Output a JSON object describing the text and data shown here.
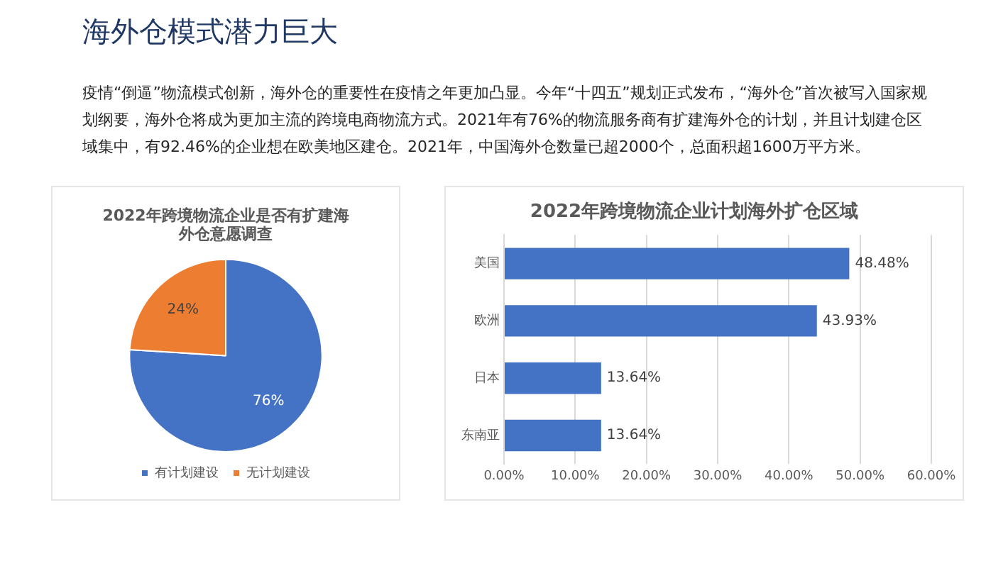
{
  "chart_data": [
    {
      "type": "other",
      "title": "海外仓模式潜力巨大",
      "annotations": [
        "疫情“倒逼”物流模式创新，海外仓的重要性在疫情之年更加凸显。今年“十四五”规划正式发布，“海外仓”首次被写入国家规划纲要，海外仓将成为更加主流的跨境电商物流方式。2021年有76%的物流服务商有扩建海外仓的计划，并且计划建仓区域集中，有92.46%的企业想在欧美地区建仓。2021年，中国海外仓数量已超2000个，总面积超1600万平方米。"
      ]
    },
    {
      "type": "pie",
      "title": "2022年跨境物流企业是否有扩建海外仓意愿调查",
      "categories": [
        "有计划建设",
        "无计划建设"
      ],
      "values": [
        76,
        24
      ],
      "colors": [
        "#4472c4",
        "#ed7d31"
      ],
      "value_labels": [
        "76%",
        "24%"
      ],
      "legend": "bottom"
    },
    {
      "type": "bar",
      "orientation": "horizontal",
      "title": "2022年跨境物流企业计划海外扩仓区域",
      "categories": [
        "美国",
        "欧洲",
        "日本",
        "东南亚"
      ],
      "values": [
        48.48,
        43.93,
        13.64,
        13.64
      ],
      "color": "#4472c4",
      "value_labels": [
        "48.48%",
        "43.93%",
        "13.64%",
        "13.64%"
      ],
      "xlim": [
        0,
        60
      ],
      "xticks": [
        {
          "value": 0,
          "label": "0.00%"
        },
        {
          "value": 10,
          "label": "10.00%"
        },
        {
          "value": 20,
          "label": "20.00%"
        },
        {
          "value": 30,
          "label": "30.00%"
        },
        {
          "value": 40,
          "label": "40.00%"
        },
        {
          "value": 50,
          "label": "50.00%"
        },
        {
          "value": 60,
          "label": "60.00%"
        }
      ],
      "grid": "x",
      "legend": false
    }
  ]
}
